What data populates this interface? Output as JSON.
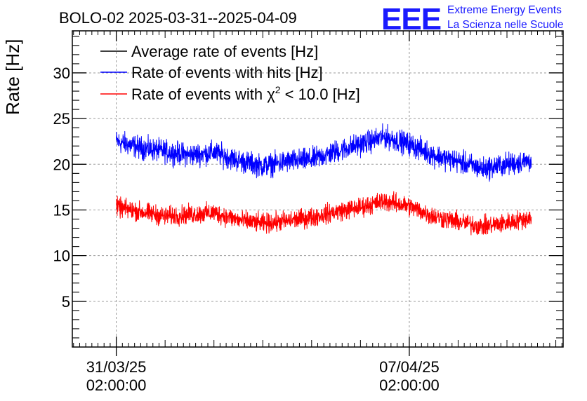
{
  "colors": {
    "average": "#000000",
    "hits": "#0000ff",
    "chi2": "#ff0000",
    "grid": "#9a9a9a",
    "logo": "#1a1aff"
  },
  "logo": {
    "mark": "EEE",
    "line1": "Extreme Energy Events",
    "line2": "La Scienza nelle Scuole"
  },
  "chart_data": {
    "type": "line",
    "title": "BOLO-02 2025-03-31--2025-04-09",
    "ylabel": "Rate [Hz]",
    "xlabel": "",
    "xlim_days": [
      -0.9,
      9.15
    ],
    "ylim": [
      0,
      34.6
    ],
    "grid": true,
    "legend_position": "top-left",
    "yticks": [
      5,
      10,
      15,
      20,
      25,
      30
    ],
    "xticks": [
      {
        "day": 0,
        "date": "31/03/25",
        "time": "02:00:00"
      },
      {
        "day": 6,
        "date": "07/04/25",
        "time": "02:00:00"
      }
    ],
    "series": [
      {
        "name": "Average rate of events [Hz]",
        "legend_main": "Average rate of events [Hz]",
        "legend_sup": "",
        "legend_tail": "",
        "color": "#000000",
        "x_days": [],
        "values": [],
        "noise": 0
      },
      {
        "name": "Rate of events with hits [Hz]",
        "legend_main": "Rate of events with hits [Hz]",
        "legend_sup": "",
        "legend_tail": "",
        "color": "#0000ff",
        "x_days": [
          0,
          0.5,
          1,
          1.5,
          2,
          2.5,
          3,
          3.5,
          4,
          4.5,
          5,
          5.5,
          6,
          6.5,
          7,
          7.5,
          8,
          8.5
        ],
        "values": [
          22.5,
          21.8,
          21.4,
          21.0,
          21.3,
          20.4,
          19.8,
          20.3,
          20.5,
          21.4,
          22.2,
          23.0,
          22.2,
          21.0,
          20.3,
          19.5,
          20.0,
          20.4
        ],
        "noise": 1.0
      },
      {
        "name": "Rate of events with χ2 < 10.0 [Hz]",
        "legend_main": "Rate of events with χ",
        "legend_sup": "2",
        "legend_tail": " < 10.0 [Hz]",
        "color": "#ff0000",
        "x_days": [
          0,
          0.5,
          1,
          1.5,
          2,
          2.5,
          3,
          3.5,
          4,
          4.5,
          5,
          5.5,
          6,
          6.5,
          7,
          7.5,
          8,
          8.5
        ],
        "values": [
          15.3,
          14.8,
          14.3,
          14.5,
          14.7,
          13.9,
          13.5,
          13.8,
          14.2,
          14.8,
          15.3,
          16.0,
          15.4,
          14.3,
          13.7,
          13.2,
          13.6,
          14.2
        ],
        "noise": 0.85
      }
    ]
  }
}
